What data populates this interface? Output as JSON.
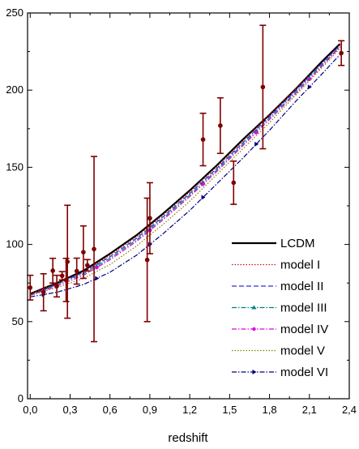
{
  "chart_data": {
    "type": "line",
    "xlabel": "redshift",
    "ylabel": "",
    "xlim": [
      -0.02,
      2.4
    ],
    "ylim": [
      0,
      250
    ],
    "xticks": [
      0.0,
      0.3,
      0.6,
      0.9,
      1.2,
      1.5,
      1.8,
      2.1,
      2.4
    ],
    "xtick_labels": [
      "0,0",
      "0,3",
      "0,6",
      "0,9",
      "1,2",
      "1,5",
      "1,8",
      "2,1",
      "2,4"
    ],
    "yticks": [
      0,
      50,
      100,
      150,
      200,
      250
    ],
    "ytick_labels": [
      "0",
      "50",
      "100",
      "150",
      "200",
      "250"
    ],
    "legend_position": "bottom-right",
    "grid": false,
    "series": [
      {
        "name": "LCDM",
        "color": "#000000",
        "style": "solid",
        "marker": "none",
        "x": [
          0,
          0.2,
          0.4,
          0.6,
          0.8,
          1.0,
          1.2,
          1.4,
          1.6,
          1.8,
          2.0,
          2.2,
          2.33
        ],
        "values": [
          68,
          75,
          83,
          94,
          106,
          120,
          135,
          151,
          168,
          184,
          201,
          219,
          230
        ]
      },
      {
        "name": "model I",
        "color": "#d01010",
        "style": "dotted",
        "marker": "none",
        "x": [
          0,
          0.2,
          0.4,
          0.6,
          0.8,
          1.0,
          1.2,
          1.4,
          1.6,
          1.8,
          2.0,
          2.2,
          2.33
        ],
        "values": [
          68,
          75,
          82,
          93,
          105,
          119,
          134,
          150,
          167,
          184,
          201,
          218,
          229
        ]
      },
      {
        "name": "model II",
        "color": "#3030d0",
        "style": "dashed",
        "marker": "none",
        "x": [
          0,
          0.2,
          0.4,
          0.6,
          0.8,
          1.0,
          1.2,
          1.4,
          1.6,
          1.8,
          2.0,
          2.2,
          2.33
        ],
        "values": [
          67,
          74,
          82,
          92,
          104,
          118,
          133,
          149,
          166,
          183,
          200,
          218,
          229
        ]
      },
      {
        "name": "model III",
        "color": "#008080",
        "style": "dashdot",
        "marker": "triangle",
        "x": [
          0,
          0.2,
          0.4,
          0.6,
          0.8,
          1.0,
          1.2,
          1.4,
          1.6,
          1.8,
          2.0,
          2.2,
          2.33
        ],
        "values": [
          67,
          74,
          81,
          91,
          103,
          117,
          132,
          148,
          165,
          182,
          199,
          217,
          228
        ]
      },
      {
        "name": "model IV",
        "color": "#e000e0",
        "style": "dashdot",
        "marker": "star",
        "x": [
          0,
          0.2,
          0.4,
          0.6,
          0.8,
          1.0,
          1.2,
          1.4,
          1.6,
          1.8,
          2.0,
          2.2,
          2.33
        ],
        "values": [
          67,
          73,
          80,
          90,
          102,
          116,
          131,
          147,
          164,
          181,
          198,
          216,
          228
        ]
      },
      {
        "name": "model V",
        "color": "#808000",
        "style": "dotted",
        "marker": "none",
        "x": [
          0,
          0.2,
          0.4,
          0.6,
          0.8,
          1.0,
          1.2,
          1.4,
          1.6,
          1.8,
          2.0,
          2.2,
          2.33
        ],
        "values": [
          67,
          72,
          78,
          87,
          99,
          113,
          128,
          145,
          162,
          179,
          197,
          215,
          227
        ]
      },
      {
        "name": "model VI",
        "color": "#000080",
        "style": "dashdot",
        "marker": "triangle-right",
        "x": [
          0,
          0.2,
          0.4,
          0.6,
          0.8,
          1.0,
          1.2,
          1.4,
          1.6,
          1.8,
          2.0,
          2.2,
          2.33
        ],
        "values": [
          66,
          69,
          74,
          82,
          93,
          107,
          122,
          139,
          156,
          174,
          193,
          211,
          223
        ]
      }
    ],
    "observations": {
      "color": "#800000",
      "points": [
        {
          "x": 0.0,
          "y": 72,
          "err": 8
        },
        {
          "x": 0.1,
          "y": 69,
          "err": 12
        },
        {
          "x": 0.17,
          "y": 83,
          "err": 8
        },
        {
          "x": 0.2,
          "y": 73,
          "err": 7
        },
        {
          "x": 0.24,
          "y": 79.7,
          "err": 2.7
        },
        {
          "x": 0.27,
          "y": 77,
          "err": 14
        },
        {
          "x": 0.28,
          "y": 88.8,
          "err": 36.6
        },
        {
          "x": 0.35,
          "y": 82.7,
          "err": 8.4
        },
        {
          "x": 0.4,
          "y": 95,
          "err": 17
        },
        {
          "x": 0.43,
          "y": 86.5,
          "err": 3.7
        },
        {
          "x": 0.48,
          "y": 97,
          "err": 60
        },
        {
          "x": 0.88,
          "y": 90,
          "err": 40
        },
        {
          "x": 0.9,
          "y": 117,
          "err": 23
        },
        {
          "x": 1.3,
          "y": 168,
          "err": 17
        },
        {
          "x": 1.43,
          "y": 177,
          "err": 18
        },
        {
          "x": 1.53,
          "y": 140,
          "err": 14
        },
        {
          "x": 1.75,
          "y": 202,
          "err": 40
        },
        {
          "x": 2.34,
          "y": 224,
          "err": 8
        }
      ]
    }
  }
}
